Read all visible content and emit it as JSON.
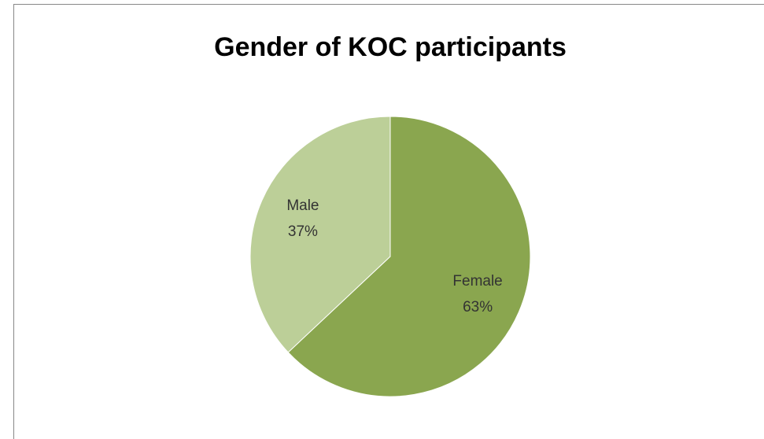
{
  "chart_data": {
    "type": "pie",
    "title": "Gender of KOC participants",
    "categories": [
      "Female",
      "Male"
    ],
    "values": [
      63,
      37
    ],
    "value_labels": [
      "63%",
      "37%"
    ],
    "colors": [
      "#8aa64f",
      "#bccf98"
    ]
  }
}
